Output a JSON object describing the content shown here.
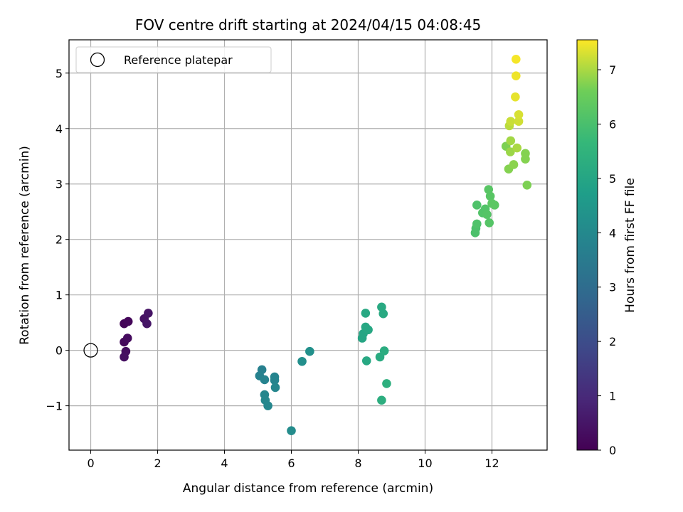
{
  "chart_data": {
    "type": "scatter",
    "title": "FOV centre drift starting at 2024/04/15 04:08:45",
    "xlabel": "Angular distance from reference (arcmin)",
    "ylabel": "Rotation from reference (arcmin)",
    "xlim": [
      -0.65,
      13.65
    ],
    "ylim": [
      -1.8,
      5.6
    ],
    "xticks": [
      0,
      2,
      4,
      6,
      8,
      10,
      12
    ],
    "xtick_labels": [
      "0",
      "2",
      "4",
      "6",
      "8",
      "10",
      "12"
    ],
    "yticks": [
      -1,
      0,
      1,
      2,
      3,
      4,
      5
    ],
    "ytick_labels": [
      "−1",
      "0",
      "1",
      "2",
      "3",
      "4",
      "5"
    ],
    "grid": true,
    "legend": {
      "placement": "top-left",
      "entries": [
        "Reference platepar"
      ]
    },
    "reference_point": {
      "x": 0,
      "y": 0
    },
    "colorbar": {
      "label": "Hours from first FF file",
      "range": [
        0,
        7.55
      ],
      "ticks": [
        0,
        1,
        2,
        3,
        4,
        5,
        6,
        7
      ],
      "tick_labels": [
        "0",
        "1",
        "2",
        "3",
        "4",
        "5",
        "6",
        "7"
      ],
      "colormap": "viridis"
    },
    "series": [
      {
        "points": [
          {
            "x": 1.0,
            "y": 0.48,
            "hours": 0.1
          },
          {
            "x": 1.12,
            "y": 0.52,
            "hours": 0.15
          },
          {
            "x": 1.0,
            "y": 0.15,
            "hours": 0.2
          },
          {
            "x": 1.1,
            "y": 0.22,
            "hours": 0.25
          },
          {
            "x": 1.05,
            "y": -0.02,
            "hours": 0.3
          },
          {
            "x": 1.0,
            "y": -0.12,
            "hours": 0.35
          },
          {
            "x": 1.6,
            "y": 0.57,
            "hours": 0.4
          },
          {
            "x": 1.72,
            "y": 0.67,
            "hours": 0.45
          },
          {
            "x": 1.68,
            "y": 0.48,
            "hours": 0.5
          },
          {
            "x": 5.12,
            "y": -0.35,
            "hours": 3.7
          },
          {
            "x": 5.05,
            "y": -0.46,
            "hours": 3.75
          },
          {
            "x": 5.2,
            "y": -0.53,
            "hours": 3.8
          },
          {
            "x": 5.5,
            "y": -0.48,
            "hours": 3.85
          },
          {
            "x": 5.5,
            "y": -0.54,
            "hours": 3.85
          },
          {
            "x": 5.52,
            "y": -0.67,
            "hours": 3.9
          },
          {
            "x": 5.2,
            "y": -0.8,
            "hours": 3.9
          },
          {
            "x": 5.22,
            "y": -0.9,
            "hours": 3.95
          },
          {
            "x": 5.3,
            "y": -1.0,
            "hours": 3.95
          },
          {
            "x": 6.0,
            "y": -1.45,
            "hours": 4.1
          },
          {
            "x": 6.32,
            "y": -0.2,
            "hours": 4.2
          },
          {
            "x": 6.55,
            "y": -0.02,
            "hours": 4.25
          },
          {
            "x": 8.12,
            "y": 0.22,
            "hours": 5.0
          },
          {
            "x": 8.15,
            "y": 0.3,
            "hours": 5.0
          },
          {
            "x": 8.22,
            "y": 0.42,
            "hours": 5.05
          },
          {
            "x": 8.3,
            "y": 0.37,
            "hours": 5.05
          },
          {
            "x": 8.22,
            "y": 0.67,
            "hours": 5.1
          },
          {
            "x": 8.25,
            "y": -0.19,
            "hours": 5.1
          },
          {
            "x": 8.7,
            "y": 0.78,
            "hours": 5.15
          },
          {
            "x": 8.75,
            "y": 0.66,
            "hours": 5.15
          },
          {
            "x": 8.65,
            "y": -0.12,
            "hours": 5.2
          },
          {
            "x": 8.78,
            "y": -0.01,
            "hours": 5.25
          },
          {
            "x": 8.7,
            "y": -0.9,
            "hours": 5.3
          },
          {
            "x": 8.85,
            "y": -0.6,
            "hours": 5.35
          },
          {
            "x": 11.5,
            "y": 2.12,
            "hours": 6.05
          },
          {
            "x": 11.52,
            "y": 2.2,
            "hours": 6.05
          },
          {
            "x": 11.55,
            "y": 2.28,
            "hours": 6.1
          },
          {
            "x": 11.55,
            "y": 2.62,
            "hours": 6.1
          },
          {
            "x": 11.72,
            "y": 2.48,
            "hours": 6.15
          },
          {
            "x": 11.8,
            "y": 2.55,
            "hours": 6.15
          },
          {
            "x": 11.85,
            "y": 2.45,
            "hours": 6.2
          },
          {
            "x": 11.92,
            "y": 2.3,
            "hours": 6.2
          },
          {
            "x": 11.9,
            "y": 2.9,
            "hours": 6.25
          },
          {
            "x": 11.95,
            "y": 2.78,
            "hours": 6.25
          },
          {
            "x": 12.0,
            "y": 2.65,
            "hours": 6.3
          },
          {
            "x": 12.08,
            "y": 2.62,
            "hours": 6.3
          },
          {
            "x": 12.42,
            "y": 3.68,
            "hours": 6.7
          },
          {
            "x": 12.5,
            "y": 3.27,
            "hours": 6.75
          },
          {
            "x": 12.65,
            "y": 3.35,
            "hours": 6.8
          },
          {
            "x": 12.55,
            "y": 3.58,
            "hours": 6.9
          },
          {
            "x": 12.56,
            "y": 3.78,
            "hours": 6.95
          },
          {
            "x": 12.75,
            "y": 3.65,
            "hours": 7.0
          },
          {
            "x": 13.0,
            "y": 3.55,
            "hours": 6.75
          },
          {
            "x": 13.0,
            "y": 3.45,
            "hours": 6.75
          },
          {
            "x": 13.05,
            "y": 2.98,
            "hours": 6.7
          },
          {
            "x": 12.52,
            "y": 4.05,
            "hours": 7.1
          },
          {
            "x": 12.56,
            "y": 4.13,
            "hours": 7.2
          },
          {
            "x": 12.8,
            "y": 4.13,
            "hours": 7.25
          },
          {
            "x": 12.8,
            "y": 4.25,
            "hours": 7.3
          },
          {
            "x": 12.7,
            "y": 4.57,
            "hours": 7.4
          },
          {
            "x": 12.72,
            "y": 4.95,
            "hours": 7.45
          },
          {
            "x": 12.72,
            "y": 5.25,
            "hours": 7.5
          }
        ]
      }
    ]
  }
}
